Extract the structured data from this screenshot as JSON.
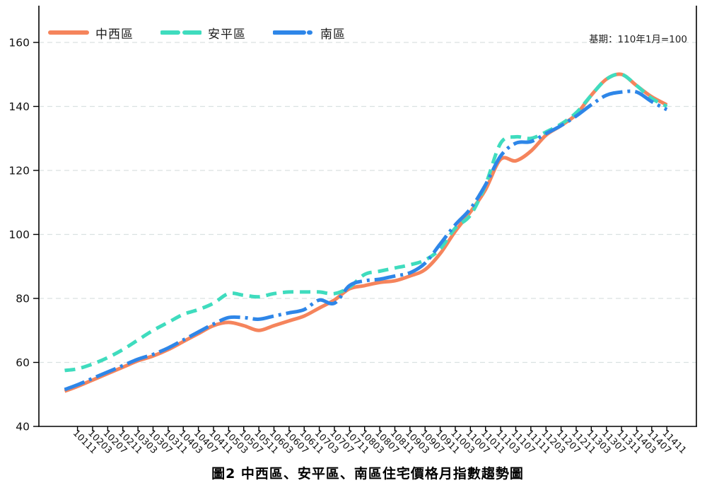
{
  "title": "圖2 中西區、安平區、南區住宅價格月指數趨勢圖",
  "annotation": "基期：110年1月=100",
  "chart_data": {
    "type": "line",
    "title": "圖2 中西區、安平區、南區住宅價格月指數趨勢圖",
    "annotation": "基期：110年1月=100",
    "xlabel": "",
    "ylabel": "",
    "yticks": [
      40,
      60,
      80,
      100,
      120,
      140,
      160
    ],
    "ylim": [
      40,
      167
    ],
    "grid": "horizontal-dashed",
    "grid_color": "#d9e1e1",
    "legend_position": "top-left",
    "categories": [
      "10111",
      "10203",
      "10207",
      "10211",
      "10303",
      "10307",
      "10311",
      "10403",
      "10407",
      "10411",
      "10503",
      "10507",
      "10511",
      "10603",
      "10607",
      "10611",
      "10703",
      "10707",
      "10711",
      "10803",
      "10807",
      "10811",
      "10903",
      "10907",
      "10911",
      "11003",
      "11007",
      "11011",
      "11103",
      "11107",
      "11111",
      "11203",
      "11207",
      "11211",
      "11303",
      "11307",
      "11311",
      "11403",
      "11407",
      "11411"
    ],
    "series": [
      {
        "name": "中西區",
        "color": "#F5845C",
        "style": "solid",
        "pre_value": 51,
        "values": [
          52.5,
          54.5,
          56.5,
          58.5,
          60.5,
          62,
          64,
          66.5,
          69,
          71.5,
          72.5,
          71.5,
          70,
          71.5,
          73,
          74.5,
          77,
          79.5,
          83,
          84,
          85,
          85.5,
          87,
          89,
          94,
          101,
          107,
          114,
          123.5,
          123,
          126,
          131,
          134,
          137.5,
          143.5,
          148.5,
          150,
          146.5,
          143,
          140.5
        ]
      },
      {
        "name": "安平區",
        "color": "#3FDCBE",
        "style": "dashed",
        "pre_value": 57.5,
        "values": [
          58,
          59.5,
          61.5,
          64,
          67,
          70,
          72.5,
          75,
          76.5,
          78.5,
          81.5,
          81,
          80.5,
          81.5,
          82,
          82,
          82,
          81.5,
          83.5,
          87.5,
          88.5,
          89.5,
          90.5,
          92,
          95.5,
          102,
          106,
          115.5,
          128.5,
          130.5,
          130,
          132,
          134.5,
          138,
          143.5,
          148.5,
          150,
          146.5,
          142.5,
          140
        ]
      },
      {
        "name": "南區",
        "color": "#2E86E8",
        "style": "dashdot",
        "pre_value": 51.5,
        "values": [
          53,
          55,
          57,
          59,
          61,
          62.5,
          64.5,
          67,
          69.5,
          72,
          74,
          74,
          73.5,
          74.5,
          75.5,
          76.5,
          79.5,
          78.5,
          84,
          85.5,
          86,
          87,
          88,
          91,
          97,
          103,
          108,
          115.5,
          124.5,
          128.5,
          129,
          131.5,
          134,
          137,
          140.5,
          143.5,
          144.5,
          144.5,
          141.5,
          139
        ]
      }
    ]
  }
}
